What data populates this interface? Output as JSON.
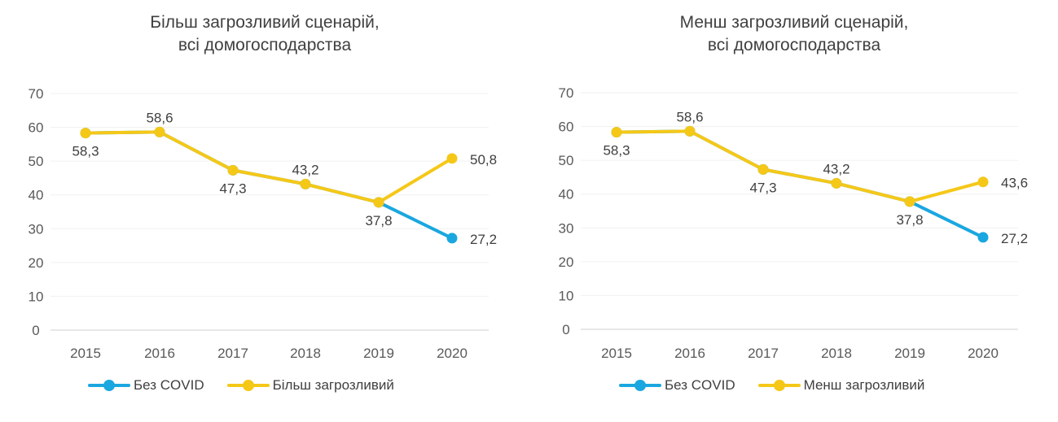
{
  "chart_data": [
    {
      "type": "line",
      "title": [
        "Більш загрозливий сценарій,",
        "всі домогосподарства"
      ],
      "categories": [
        "2015",
        "2016",
        "2017",
        "2018",
        "2019",
        "2020"
      ],
      "ylim": [
        0,
        70
      ],
      "yticks": [
        0,
        10,
        20,
        30,
        40,
        50,
        60,
        70
      ],
      "grid": true,
      "legend_position": "bottom-left",
      "series": [
        {
          "name": "Без COVID",
          "color": "#1aa7e0",
          "values": [
            58.3,
            58.6,
            47.3,
            43.2,
            37.8,
            27.2
          ]
        },
        {
          "name": "Більш загрозливий",
          "color": "#f5c818",
          "values": [
            58.3,
            58.6,
            47.3,
            43.2,
            37.8,
            50.8
          ]
        }
      ],
      "data_labels": [
        {
          "category": "2015",
          "text": "58,3",
          "position": "below"
        },
        {
          "category": "2016",
          "text": "58,6",
          "position": "above"
        },
        {
          "category": "2017",
          "text": "47,3",
          "position": "below"
        },
        {
          "category": "2018",
          "text": "43,2",
          "position": "above"
        },
        {
          "category": "2019",
          "text": "37,8",
          "position": "below"
        },
        {
          "category": "2020",
          "text": "50,8",
          "position": "right",
          "series": 1
        },
        {
          "category": "2020",
          "text": "27,2",
          "position": "right",
          "series": 0
        }
      ]
    },
    {
      "type": "line",
      "title": [
        "Менш загрозливий сценарій,",
        "всі домогосподарства"
      ],
      "categories": [
        "2015",
        "2016",
        "2017",
        "2018",
        "2019",
        "2020"
      ],
      "ylim": [
        0,
        70
      ],
      "yticks": [
        0,
        10,
        20,
        30,
        40,
        50,
        60,
        70
      ],
      "grid": true,
      "legend_position": "bottom-left",
      "series": [
        {
          "name": "Без COVID",
          "color": "#1aa7e0",
          "values": [
            58.3,
            58.6,
            47.3,
            43.2,
            37.8,
            27.2
          ]
        },
        {
          "name": "Менш загрозливий",
          "color": "#f5c818",
          "values": [
            58.3,
            58.6,
            47.3,
            43.2,
            37.8,
            43.6
          ]
        }
      ],
      "data_labels": [
        {
          "category": "2015",
          "text": "58,3",
          "position": "below"
        },
        {
          "category": "2016",
          "text": "58,6",
          "position": "above"
        },
        {
          "category": "2017",
          "text": "47,3",
          "position": "below"
        },
        {
          "category": "2018",
          "text": "43,2",
          "position": "above"
        },
        {
          "category": "2019",
          "text": "37,8",
          "position": "below"
        },
        {
          "category": "2020",
          "text": "43,6",
          "position": "right",
          "series": 1
        },
        {
          "category": "2020",
          "text": "27,2",
          "position": "right",
          "series": 0
        }
      ]
    }
  ]
}
